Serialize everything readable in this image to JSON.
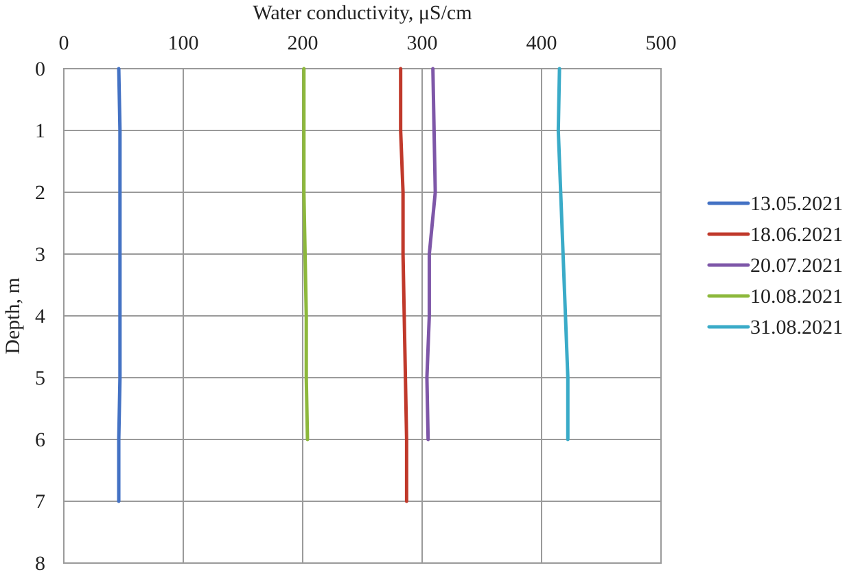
{
  "chart_data": {
    "type": "line",
    "orientation": "vertical-profile",
    "title": "",
    "xlabel": "Water conductivity, μS/cm",
    "ylabel": "Depth, m",
    "xlim": [
      0,
      500
    ],
    "ylim": [
      0,
      8
    ],
    "y_inverted": true,
    "x_axis_position": "top",
    "grid": true,
    "legend_position": "right",
    "x_ticks": [
      "0",
      "100",
      "200",
      "300",
      "400",
      "500"
    ],
    "y_ticks": [
      "0",
      "1",
      "2",
      "3",
      "4",
      "5",
      "6",
      "7",
      "8"
    ],
    "series": [
      {
        "name": "13.05.2021",
        "color": "#4472C4",
        "depth": [
          0,
          1,
          2,
          3,
          4,
          5,
          6,
          7
        ],
        "values": [
          46,
          47,
          47,
          47,
          47,
          47,
          46,
          46
        ]
      },
      {
        "name": "18.06.2021",
        "color": "#C0392B",
        "depth": [
          0,
          1,
          2,
          3,
          4,
          5,
          6,
          7
        ],
        "values": [
          282,
          282,
          284,
          284,
          285,
          286,
          287,
          287
        ]
      },
      {
        "name": "20.07.2021",
        "color": "#7E57A8",
        "depth": [
          0,
          1,
          2,
          3,
          4,
          5,
          6
        ],
        "values": [
          309,
          310,
          311,
          306,
          306,
          304,
          305
        ]
      },
      {
        "name": "10.08.2021",
        "color": "#8DB83C",
        "depth": [
          0,
          1,
          2,
          3,
          4,
          5,
          6
        ],
        "values": [
          201,
          201,
          201,
          202,
          203,
          203,
          204
        ]
      },
      {
        "name": "31.08.2021",
        "color": "#3AABC8",
        "depth": [
          0,
          1,
          2,
          3,
          4,
          5,
          6
        ],
        "values": [
          415,
          414,
          416,
          418,
          420,
          422,
          422
        ]
      }
    ]
  }
}
